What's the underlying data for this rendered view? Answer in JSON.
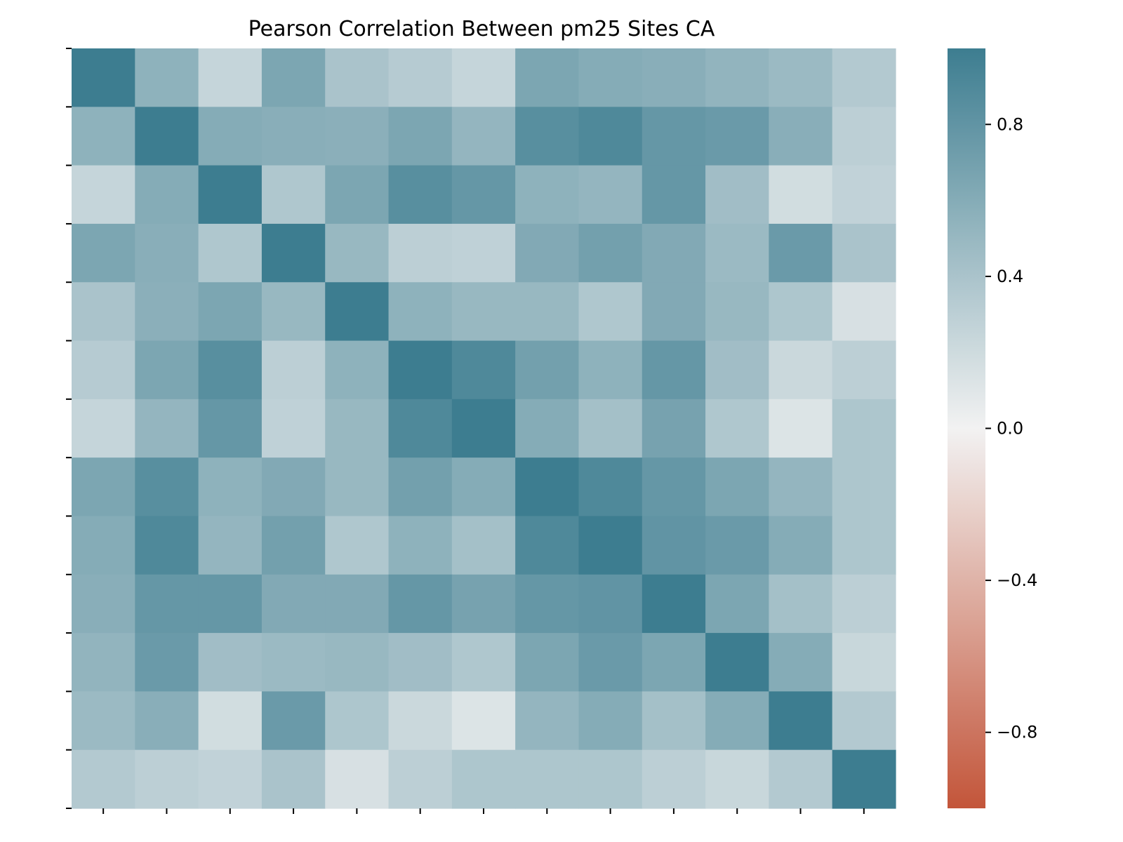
{
  "chart_data": {
    "type": "heatmap",
    "title": "Pearson Correlation Between pm25 Sites CA",
    "xlabel": "",
    "ylabel": "",
    "rows": 13,
    "cols": 13,
    "x_tick_labels": [],
    "y_tick_labels": [],
    "values": [
      [
        1.0,
        0.55,
        0.25,
        0.65,
        0.4,
        0.33,
        0.25,
        0.65,
        0.6,
        0.58,
        0.53,
        0.48,
        0.35
      ],
      [
        0.55,
        1.0,
        0.6,
        0.58,
        0.57,
        0.65,
        0.52,
        0.85,
        0.9,
        0.78,
        0.75,
        0.58,
        0.3
      ],
      [
        0.25,
        0.6,
        1.0,
        0.37,
        0.65,
        0.85,
        0.78,
        0.55,
        0.52,
        0.78,
        0.45,
        0.18,
        0.27
      ],
      [
        0.65,
        0.58,
        0.37,
        1.0,
        0.5,
        0.3,
        0.28,
        0.62,
        0.7,
        0.62,
        0.48,
        0.75,
        0.4
      ],
      [
        0.4,
        0.57,
        0.65,
        0.5,
        1.0,
        0.55,
        0.5,
        0.5,
        0.37,
        0.62,
        0.5,
        0.38,
        0.15
      ],
      [
        0.33,
        0.65,
        0.85,
        0.3,
        0.55,
        1.0,
        0.9,
        0.7,
        0.55,
        0.78,
        0.45,
        0.22,
        0.3
      ],
      [
        0.25,
        0.52,
        0.78,
        0.28,
        0.5,
        0.9,
        1.0,
        0.6,
        0.43,
        0.68,
        0.37,
        0.12,
        0.38
      ],
      [
        0.65,
        0.85,
        0.55,
        0.62,
        0.5,
        0.7,
        0.6,
        1.0,
        0.9,
        0.78,
        0.65,
        0.52,
        0.38
      ],
      [
        0.6,
        0.9,
        0.52,
        0.7,
        0.37,
        0.55,
        0.43,
        0.9,
        1.0,
        0.8,
        0.75,
        0.6,
        0.38
      ],
      [
        0.58,
        0.78,
        0.78,
        0.62,
        0.62,
        0.78,
        0.68,
        0.78,
        0.8,
        1.0,
        0.65,
        0.43,
        0.3
      ],
      [
        0.53,
        0.75,
        0.45,
        0.48,
        0.5,
        0.45,
        0.37,
        0.65,
        0.75,
        0.65,
        1.0,
        0.6,
        0.23
      ],
      [
        0.48,
        0.58,
        0.18,
        0.75,
        0.38,
        0.22,
        0.12,
        0.52,
        0.6,
        0.43,
        0.6,
        1.0,
        0.35
      ],
      [
        0.35,
        0.3,
        0.27,
        0.4,
        0.15,
        0.3,
        0.38,
        0.38,
        0.38,
        0.3,
        0.23,
        0.35,
        1.0
      ]
    ],
    "vmin": -1.0,
    "vmax": 1.0,
    "colorbar": {
      "ticks": [
        0.8,
        0.4,
        0.0,
        -0.4,
        -0.8
      ],
      "tick_labels": [
        "0.8",
        "0.4",
        "0.0",
        "−0.4",
        "−0.8"
      ]
    },
    "colormap": {
      "negative_end": "#c3553a",
      "center": "#f2f2f2",
      "positive_end": "#3d7d90"
    }
  }
}
